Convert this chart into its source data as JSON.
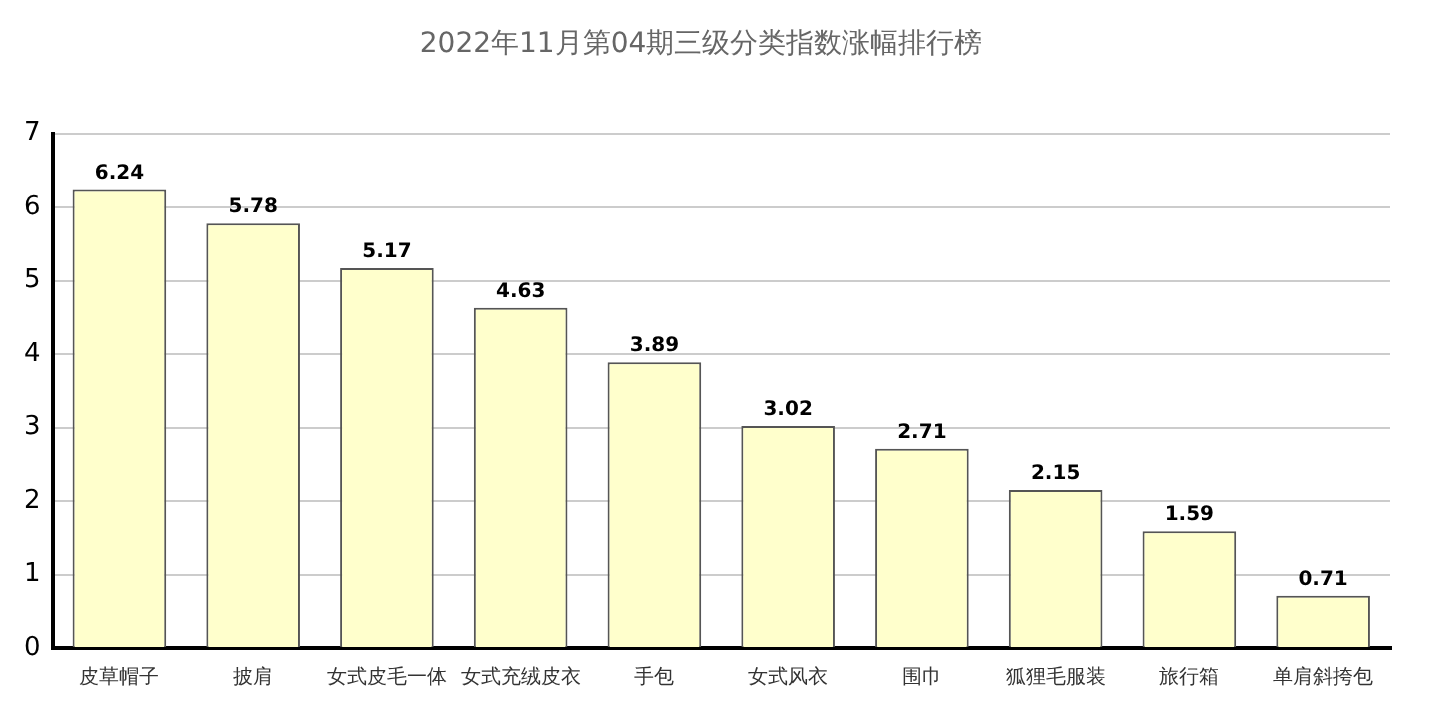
{
  "chart_data": {
    "type": "bar",
    "title": "2022年11月第04期三级分类指数涨幅排行榜",
    "categories": [
      "皮草帽子",
      "披肩",
      "女式皮毛一体",
      "女式充绒皮衣",
      "手包",
      "女式风衣",
      "围巾",
      "狐狸毛服装",
      "旅行箱",
      "单肩斜挎包"
    ],
    "values": [
      6.24,
      5.78,
      5.17,
      4.63,
      3.89,
      3.02,
      2.71,
      2.15,
      1.59,
      0.71
    ],
    "color": "#ffffcc",
    "ylim": [
      0,
      7
    ],
    "yticks": [
      0,
      1,
      2,
      3,
      4,
      5,
      6,
      7
    ],
    "grid": "y",
    "data_labels": true,
    "legend": false
  }
}
